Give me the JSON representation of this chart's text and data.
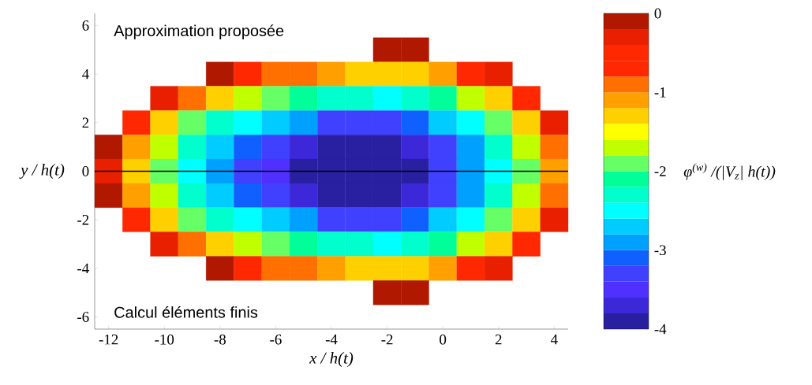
{
  "chart_data": {
    "type": "heatmap",
    "xlabel": "x / h(t)",
    "ylabel": "y / h(t)",
    "clabel": "φ$^{(w)}$ /(|V$_{z}$| h(t))",
    "annotations": [
      "Approximation proposée",
      "Calcul éléments finis"
    ],
    "categories": [
      "-12",
      null,
      "-10",
      null,
      "-8",
      null,
      "-6",
      null,
      "-4",
      null,
      "-2",
      null,
      "0",
      null,
      "2",
      null,
      "4"
    ],
    "y_categories": [
      "6",
      null,
      "4",
      null,
      "2",
      null,
      "0",
      null,
      "-2",
      null,
      "-4",
      null,
      "-6"
    ],
    "cells": [
      [
        null,
        null,
        null,
        null,
        null,
        null,
        null,
        null,
        null,
        null,
        null,
        null,
        null,
        null,
        null,
        null,
        null
      ],
      [
        null,
        null,
        null,
        null,
        null,
        null,
        null,
        null,
        null,
        null,
        -0.1,
        -0.1,
        null,
        null,
        null,
        null,
        null
      ],
      [
        null,
        null,
        null,
        null,
        -0.1,
        -0.6,
        -0.9,
        -1.0,
        -1.2,
        -1.3,
        -1.4,
        -1.3,
        -1.1,
        -0.8,
        -0.3,
        null,
        null
      ],
      [
        null,
        null,
        -0.3,
        -1.0,
        -1.4,
        -1.8,
        -2.0,
        -2.2,
        -2.3,
        -2.4,
        -2.5,
        -2.4,
        -2.1,
        -1.8,
        -1.3,
        -0.6,
        null
      ],
      [
        null,
        -0.5,
        -1.3,
        -1.9,
        -2.3,
        -2.6,
        -2.8,
        -3.0,
        -3.2,
        -3.3,
        -3.3,
        -3.1,
        -2.8,
        -2.5,
        -2.0,
        -1.3,
        -0.3
      ],
      [
        -0.1,
        -1.1,
        -1.8,
        -2.4,
        -2.8,
        -3.1,
        -3.3,
        -3.6,
        -3.85,
        -3.85,
        -3.85,
        -3.7,
        -3.3,
        -2.9,
        -2.4,
        -1.8,
        -0.9
      ],
      [
        -0.4,
        -1.3,
        -2.0,
        -2.6,
        -3.0,
        -3.3,
        -3.5,
        -3.85,
        -3.9,
        -3.95,
        -3.9,
        -3.85,
        -3.4,
        -3.0,
        -2.5,
        -1.9,
        -1.1
      ],
      [
        -0.1,
        -1.1,
        -1.8,
        -2.4,
        -2.8,
        -3.1,
        -3.3,
        -3.6,
        -3.85,
        -3.85,
        -3.85,
        -3.7,
        -3.3,
        -2.9,
        -2.4,
        -1.8,
        -0.9
      ],
      [
        null,
        -0.5,
        -1.3,
        -1.9,
        -2.3,
        -2.6,
        -2.8,
        -3.0,
        -3.2,
        -3.3,
        -3.3,
        -3.1,
        -2.8,
        -2.5,
        -2.0,
        -1.3,
        -0.3
      ],
      [
        null,
        null,
        -0.3,
        -1.0,
        -1.4,
        -1.8,
        -2.0,
        -2.2,
        -2.3,
        -2.4,
        -2.5,
        -2.4,
        -2.1,
        -1.8,
        -1.3,
        -0.6,
        null
      ],
      [
        null,
        null,
        null,
        null,
        -0.1,
        -0.6,
        -0.9,
        -1.0,
        -1.2,
        -1.3,
        -1.4,
        -1.3,
        -1.1,
        -0.8,
        -0.3,
        null,
        null
      ],
      [
        null,
        null,
        null,
        null,
        null,
        null,
        null,
        null,
        null,
        null,
        -0.1,
        -0.1,
        null,
        null,
        null,
        null,
        null
      ],
      [
        null,
        null,
        null,
        null,
        null,
        null,
        null,
        null,
        null,
        null,
        null,
        null,
        null,
        null,
        null,
        null,
        null
      ]
    ],
    "clim": [
      -4,
      0
    ],
    "cticks": [
      -4,
      -3,
      -2,
      -1,
      0
    ],
    "ref_lines": [
      {
        "axis": "y",
        "value": "0",
        "color": "#000000"
      }
    ]
  }
}
